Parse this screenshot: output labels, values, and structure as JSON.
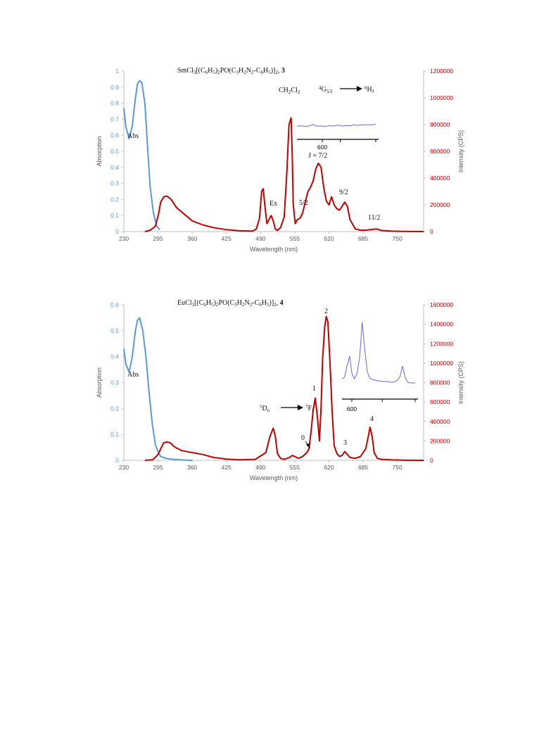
{
  "colors": {
    "abs": "#5b9bd5",
    "em": "#c00000",
    "inset": "#6666dd",
    "axis_left": "#5b9bd5",
    "axis_right": "#c00000",
    "ink": "#222222"
  },
  "chart_data": [
    {
      "type": "line",
      "title_parts": [
        "SmCl",
        "3",
        "[(C",
        "6",
        "H",
        "5",
        ")",
        "2",
        "PO(C",
        "3",
        "H",
        "2",
        "N",
        "2",
        "-C",
        "6",
        "H",
        "5",
        ")]",
        "2",
        ", ",
        "3"
      ],
      "xlabel": "Wavelength (nm)",
      "ylabel": "Absorption",
      "y2label": "Intensity (CPS)",
      "xlim": [
        230,
        800
      ],
      "ylim": [
        0,
        1
      ],
      "y2lim": [
        0,
        1200000
      ],
      "x_ticks": [
        "230",
        "295",
        "360",
        "425",
        "490",
        "555",
        "620",
        "685",
        "750"
      ],
      "y_ticks": [
        "0",
        "0.1",
        "0.2",
        "0.3",
        "0.4",
        "0.5",
        "0.6",
        "0.7",
        "0.8",
        "0.9",
        "1"
      ],
      "y2_ticks": [
        "0",
        "200000",
        "400000",
        "600000",
        "800000",
        "1000000",
        "1200000"
      ],
      "series": [
        {
          "axis": "left",
          "x": [
            230,
            234,
            240,
            246,
            252,
            256,
            260,
            264,
            270,
            276,
            280,
            286,
            292,
            298
          ],
          "y": [
            0.77,
            0.65,
            0.58,
            0.66,
            0.83,
            0.92,
            0.94,
            0.93,
            0.8,
            0.48,
            0.28,
            0.12,
            0.04,
            0.01
          ]
        },
        {
          "axis": "right",
          "x": [
            270,
            280,
            290,
            296,
            300,
            306,
            312,
            320,
            330,
            345,
            360,
            380,
            400,
            425,
            450,
            475,
            482,
            488,
            492,
            495,
            498,
            502,
            506,
            510,
            514,
            518,
            522,
            528,
            535,
            540,
            544,
            548,
            550,
            552,
            556,
            560,
            565,
            570,
            575,
            580,
            585,
            590,
            595,
            600,
            605,
            610,
            615,
            620,
            625,
            630,
            635,
            640,
            645,
            650,
            655,
            660,
            670,
            680,
            690,
            700,
            710,
            720,
            740,
            760,
            800
          ],
          "y": [
            0,
            10000,
            40000,
            130000,
            220000,
            260000,
            265000,
            240000,
            180000,
            130000,
            80000,
            50000,
            30000,
            14000,
            6000,
            4000,
            20000,
            100000,
            300000,
            320000,
            200000,
            60000,
            90000,
            120000,
            80000,
            20000,
            8000,
            30000,
            110000,
            450000,
            800000,
            850000,
            600000,
            200000,
            60000,
            90000,
            100000,
            140000,
            220000,
            300000,
            330000,
            380000,
            470000,
            510000,
            480000,
            330000,
            230000,
            200000,
            260000,
            200000,
            170000,
            160000,
            190000,
            220000,
            190000,
            90000,
            20000,
            10000,
            10000,
            15000,
            20000,
            8000,
            3000,
            1000,
            0
          ]
        }
      ],
      "annotations": {
        "abs": "Abs",
        "ex": "Ex",
        "solvent_parts": [
          "CH",
          "2",
          "Cl",
          "2"
        ],
        "j52": "5/2",
        "j72": "J = 7/2",
        "j92": "9/2",
        "j112": "11/2",
        "transition_parts": [
          "4",
          "G",
          "5/2",
          "6",
          "H",
          "J"
        ]
      },
      "inset": {
        "x_tick": "600",
        "y": [
          0.4,
          0.39,
          0.4,
          0.38,
          0.39,
          0.41,
          0.44,
          0.4,
          0.39,
          0.4,
          0.38,
          0.39,
          0.41,
          0.39,
          0.4,
          0.42,
          0.41,
          0.39,
          0.41,
          0.4,
          0.41,
          0.43,
          0.41,
          0.42,
          0.43,
          0.42,
          0.44,
          0.43,
          0.44,
          0.45
        ]
      }
    },
    {
      "type": "line",
      "title_parts": [
        "EuCl",
        "3",
        "[(C",
        "6",
        "H",
        "5",
        ")",
        "2",
        "PO(C",
        "3",
        "H",
        "2",
        "N",
        "2",
        "-C",
        "6",
        "H",
        "5",
        ")]",
        "2",
        ", ",
        "4"
      ],
      "xlabel": "Wavelength (nm)",
      "ylabel": "Absorption",
      "y2label": "Intensity (CPS)",
      "xlim": [
        230,
        800
      ],
      "ylim": [
        0,
        0.6
      ],
      "y2lim": [
        0,
        1600000
      ],
      "x_ticks": [
        "230",
        "295",
        "360",
        "425",
        "490",
        "555",
        "620",
        "685",
        "750"
      ],
      "y_ticks": [
        "0",
        "0.1",
        "0.2",
        "0.3",
        "0.4",
        "0.5",
        "0.6"
      ],
      "y2_ticks": [
        "0",
        "200000",
        "400000",
        "600000",
        "800000",
        "1000000",
        "1200000",
        "1400000",
        "1600000"
      ],
      "series": [
        {
          "axis": "left",
          "x": [
            230,
            234,
            240,
            246,
            252,
            256,
            260,
            266,
            272,
            278,
            284,
            290,
            296,
            300,
            310,
            320,
            330,
            345,
            360
          ],
          "y": [
            0.43,
            0.37,
            0.34,
            0.4,
            0.5,
            0.54,
            0.55,
            0.5,
            0.4,
            0.26,
            0.14,
            0.06,
            0.03,
            0.015,
            0.008,
            0.005,
            0.003,
            0.001,
            0
          ]
        },
        {
          "axis": "right",
          "x": [
            270,
            285,
            295,
            302,
            306,
            312,
            318,
            326,
            340,
            360,
            380,
            400,
            425,
            450,
            480,
            500,
            508,
            514,
            518,
            522,
            528,
            535,
            545,
            550,
            555,
            562,
            570,
            578,
            582,
            586,
            590,
            594,
            598,
            602,
            605,
            608,
            612,
            615,
            618,
            622,
            626,
            630,
            635,
            640,
            645,
            650,
            655,
            660,
            670,
            680,
            690,
            695,
            698,
            702,
            706,
            712,
            720,
            740,
            770,
            800
          ],
          "y": [
            0,
            5000,
            60000,
            140000,
            180000,
            190000,
            180000,
            140000,
            100000,
            80000,
            60000,
            30000,
            12000,
            5000,
            10000,
            80000,
            250000,
            330000,
            250000,
            70000,
            20000,
            10000,
            30000,
            50000,
            40000,
            20000,
            40000,
            80000,
            120000,
            300000,
            520000,
            640000,
            450000,
            200000,
            550000,
            1050000,
            1380000,
            1480000,
            1420000,
            1000000,
            500000,
            150000,
            70000,
            40000,
            50000,
            90000,
            60000,
            30000,
            20000,
            40000,
            120000,
            250000,
            340000,
            250000,
            80000,
            20000,
            10000,
            4000,
            1000,
            0
          ]
        }
      ],
      "annotations": {
        "abs": "Abs",
        "l0": "0",
        "l1": "1",
        "l2": "2",
        "l3": "3",
        "l4": "4",
        "transition_parts": [
          "5",
          "D",
          "o",
          "7",
          "F",
          "J"
        ]
      },
      "inset": {
        "x_tick": "600",
        "y": [
          0.12,
          0.14,
          0.3,
          0.44,
          0.18,
          0.12,
          0.2,
          0.42,
          0.92,
          0.55,
          0.22,
          0.13,
          0.11,
          0.1,
          0.09,
          0.09,
          0.08,
          0.08,
          0.08,
          0.07,
          0.07,
          0.08,
          0.1,
          0.15,
          0.3,
          0.14,
          0.07,
          0.06,
          0.06,
          0.06
        ]
      }
    }
  ]
}
